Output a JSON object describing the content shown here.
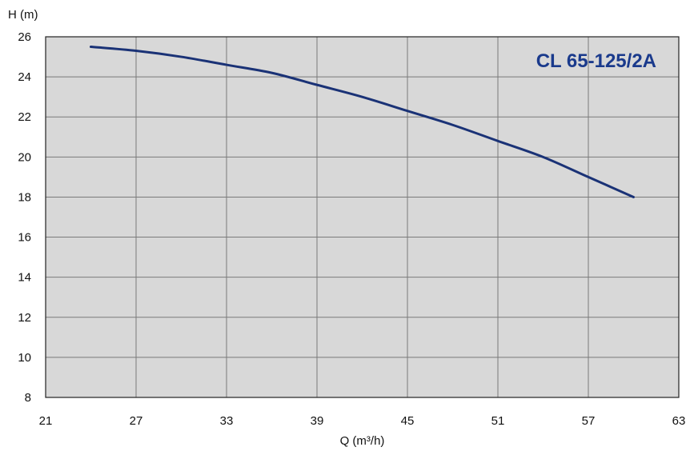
{
  "chart_data": {
    "type": "line",
    "title": "CL 65-125/2A",
    "xlabel": "Q (m³/h)",
    "ylabel": "H (m)",
    "xlim": [
      21,
      63
    ],
    "ylim": [
      8,
      26
    ],
    "xticks": [
      21,
      27,
      33,
      39,
      45,
      51,
      57,
      63
    ],
    "yticks": [
      8,
      10,
      12,
      14,
      16,
      18,
      20,
      22,
      24,
      26
    ],
    "grid": true,
    "series": [
      {
        "x": [
          24,
          27,
          30,
          33,
          36,
          39,
          42,
          45,
          48,
          51,
          54,
          57,
          60
        ],
        "y": [
          25.5,
          25.3,
          25.0,
          24.6,
          24.2,
          23.6,
          23.0,
          22.3,
          21.6,
          20.8,
          20.0,
          19.0,
          18.0
        ]
      }
    ],
    "colors": {
      "curve": "#1a3276",
      "title": "#1a3a8c",
      "plot_background": "#d8d8d8",
      "grid": "#7a7a7a",
      "frame": "#222222"
    }
  }
}
